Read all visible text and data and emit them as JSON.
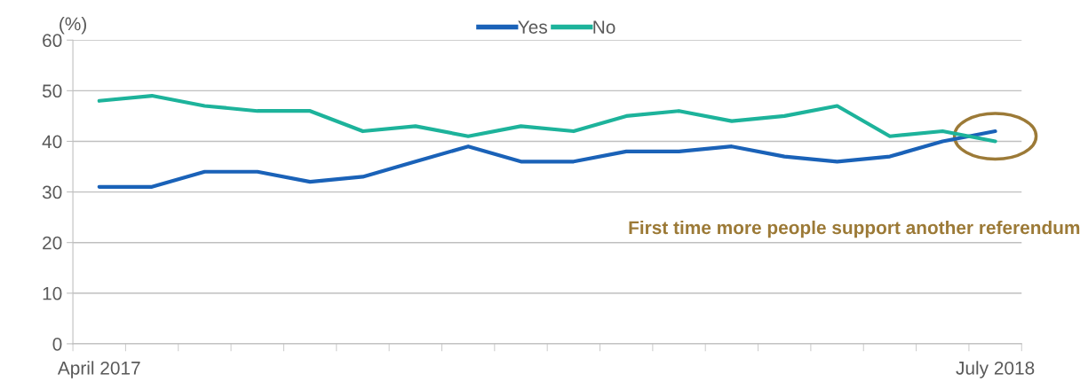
{
  "chart_data": {
    "type": "line",
    "ylabel": "(%)",
    "categories": [
      "April 2017",
      null,
      null,
      null,
      null,
      null,
      null,
      null,
      null,
      null,
      null,
      null,
      null,
      null,
      null,
      null,
      null,
      "July 2018"
    ],
    "series": [
      {
        "name": "Yes",
        "color": "#1a62b8",
        "values": [
          31,
          31,
          34,
          34,
          32,
          33,
          36,
          39,
          36,
          36,
          38,
          38,
          39,
          37,
          36,
          37,
          40,
          42
        ]
      },
      {
        "name": "No",
        "color": "#1db39b",
        "values": [
          48,
          49,
          47,
          46,
          46,
          42,
          43,
          41,
          43,
          42,
          45,
          46,
          44,
          45,
          47,
          41,
          42,
          40
        ]
      }
    ],
    "ylim": [
      0,
      60
    ],
    "yticks": [
      0,
      10,
      20,
      30,
      40,
      50,
      60
    ],
    "grid": "y",
    "legend": "top",
    "marker": "none",
    "line_style": "solid",
    "annotations": [
      "First time more people support another referendum"
    ]
  }
}
